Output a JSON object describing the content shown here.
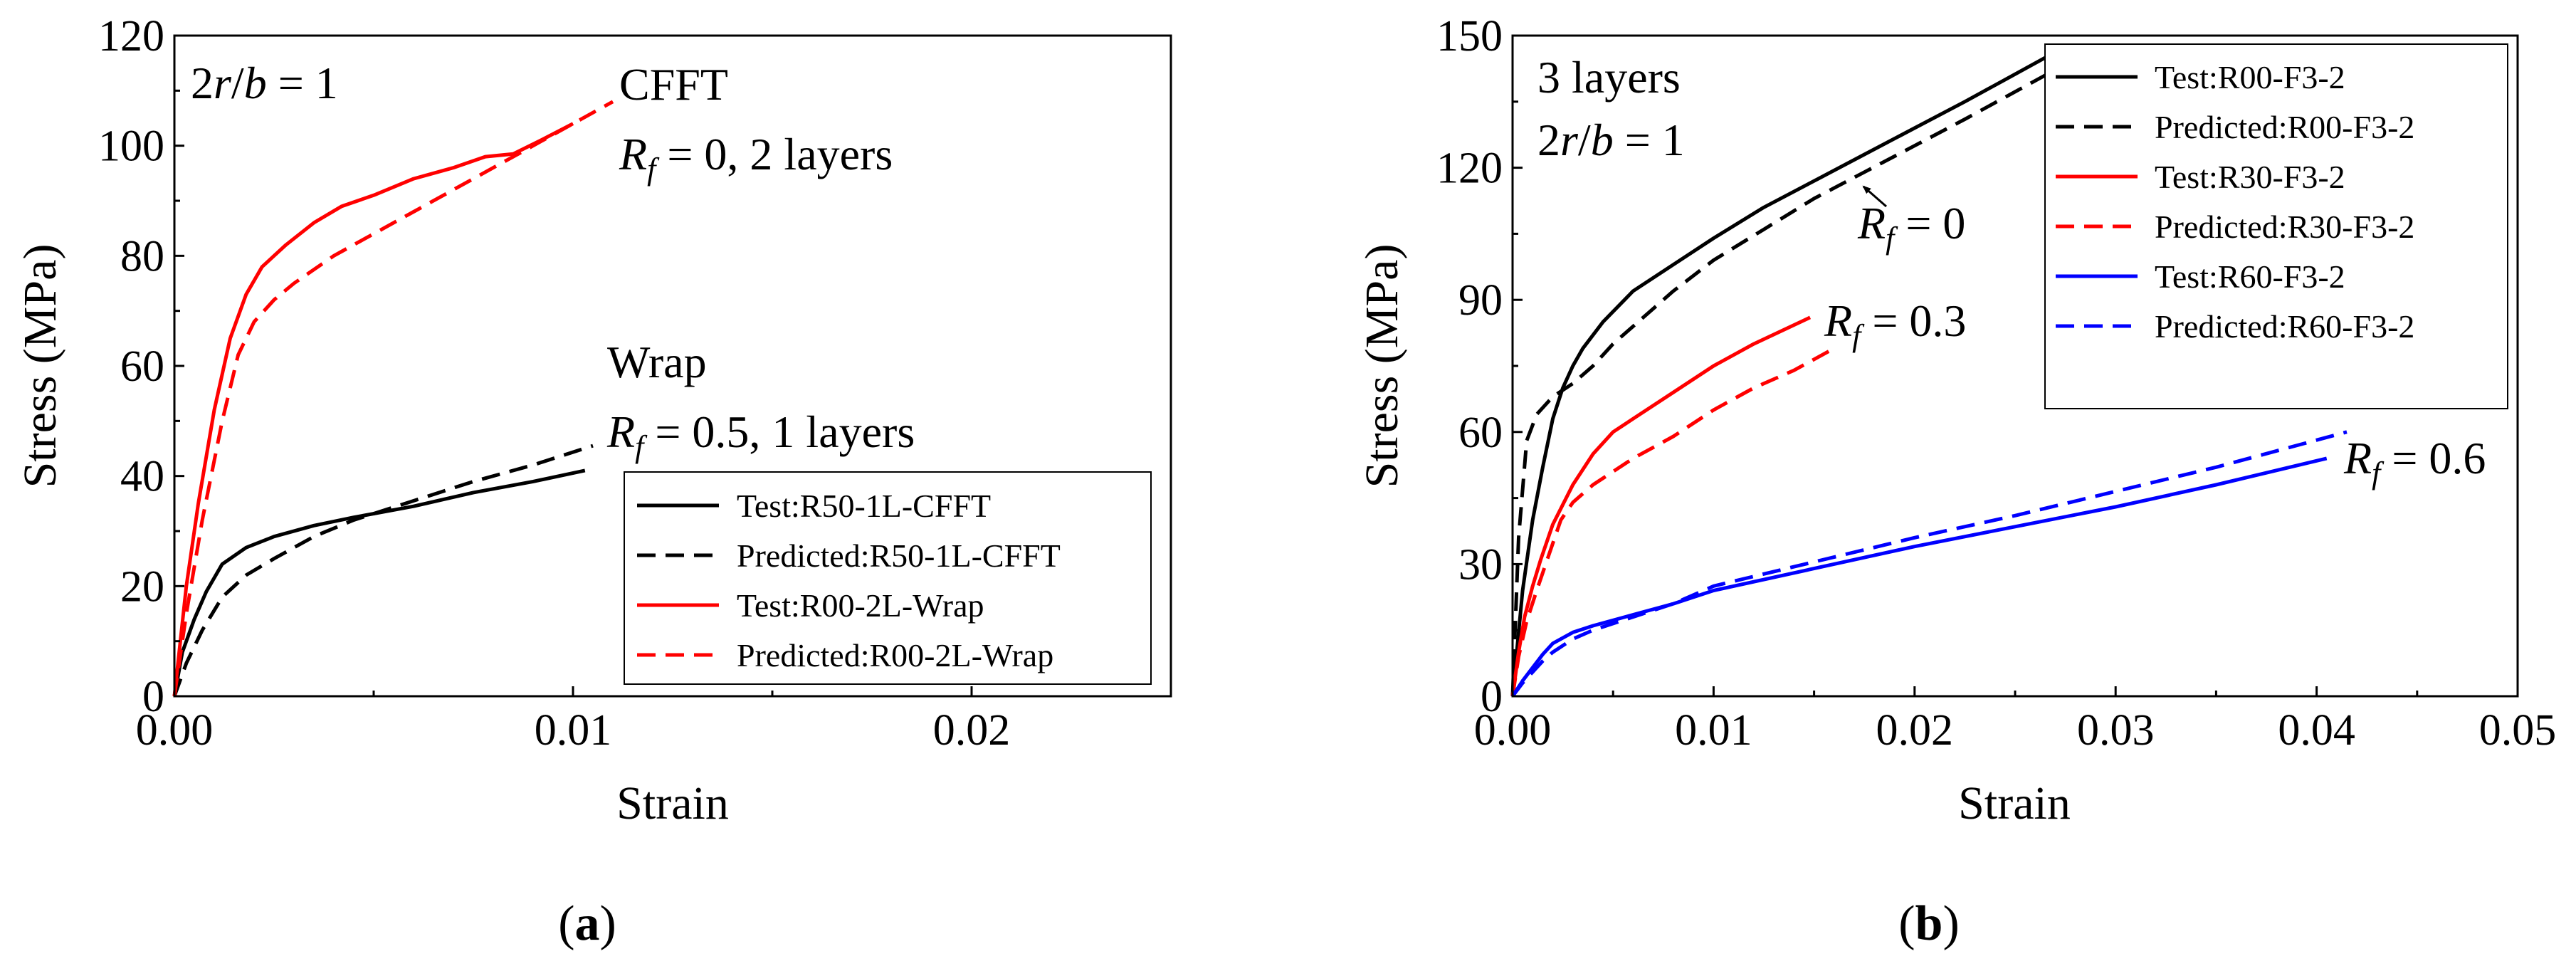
{
  "figure_labels": [
    "a",
    "b"
  ],
  "chart_data": [
    {
      "type": "line",
      "panel": "a",
      "xlabel": "Strain",
      "ylabel": "Stress (MPa)",
      "xlim": [
        0,
        0.025
      ],
      "ylim": [
        0,
        120
      ],
      "xticks": [
        0,
        0.01,
        0.02
      ],
      "xtick_labels": [
        "0.00",
        "0.01",
        "0.02"
      ],
      "yticks": [
        0,
        20,
        40,
        60,
        80,
        100,
        120
      ],
      "ytick_labels": [
        "0",
        "20",
        "40",
        "60",
        "80",
        "100",
        "120"
      ],
      "legend_position": "bottom-right",
      "series": [
        {
          "name": "Test:R50-1L-CFFT",
          "color": "#000000",
          "dash": "solid",
          "x": [
            0,
            0.0002,
            0.0005,
            0.0008,
            0.0012,
            0.0018,
            0.0025,
            0.0035,
            0.0045,
            0.006,
            0.0075,
            0.009,
            0.0103
          ],
          "y": [
            0,
            8,
            14,
            19,
            24,
            27,
            29,
            31,
            32.5,
            34.5,
            37,
            39,
            41
          ]
        },
        {
          "name": "Predicted:R50-1L-CFFT",
          "color": "#000000",
          "dash": "dashed",
          "x": [
            0,
            0.0003,
            0.0007,
            0.0012,
            0.0018,
            0.0025,
            0.0035,
            0.0045,
            0.006,
            0.0075,
            0.009,
            0.0105
          ],
          "y": [
            0,
            6,
            12,
            18,
            22,
            25,
            29,
            32,
            35.5,
            39,
            42,
            45.5
          ]
        },
        {
          "name": "Test:R00-2L-Wrap",
          "color": "#ff0000",
          "dash": "solid",
          "x": [
            0,
            0.0003,
            0.0006,
            0.001,
            0.0014,
            0.0018,
            0.0022,
            0.0028,
            0.0035,
            0.0042,
            0.005,
            0.006,
            0.007,
            0.0078,
            0.0085,
            0.0092,
            0.01
          ],
          "y": [
            0,
            20,
            35,
            52,
            65,
            73,
            78,
            82,
            86,
            89,
            91,
            94,
            96,
            98,
            98.5,
            101,
            104
          ]
        },
        {
          "name": "Predicted:R00-2L-Wrap",
          "color": "#ff0000",
          "dash": "dashed",
          "x": [
            0,
            0.0003,
            0.0007,
            0.0012,
            0.0016,
            0.002,
            0.0025,
            0.003,
            0.004,
            0.005,
            0.006,
            0.007,
            0.008,
            0.009,
            0.01,
            0.011
          ],
          "y": [
            0,
            15,
            32,
            50,
            62,
            68,
            72,
            75,
            80,
            84,
            88,
            92,
            96,
            100,
            104,
            108
          ]
        }
      ],
      "annotations": {
        "geometry": "2r/b = 1",
        "top_title": "CFFT",
        "top_note": "Rf = 0, 2 layers",
        "mid_title": "Wrap",
        "mid_note": "Rf = 0.5, 1 layers"
      }
    },
    {
      "type": "line",
      "panel": "b",
      "xlabel": "Strain",
      "ylabel": "Stress (MPa)",
      "xlim": [
        0,
        0.05
      ],
      "ylim": [
        0,
        150
      ],
      "xticks": [
        0,
        0.01,
        0.02,
        0.03,
        0.04,
        0.05
      ],
      "xtick_labels": [
        "0.00",
        "0.01",
        "0.02",
        "0.03",
        "0.04",
        "0.05"
      ],
      "yticks": [
        0,
        30,
        60,
        90,
        120,
        150
      ],
      "ytick_labels": [
        "0",
        "30",
        "60",
        "90",
        "120",
        "150"
      ],
      "legend_position": "top-right",
      "series": [
        {
          "name": "Test:R00-F3-2",
          "color": "#000000",
          "dash": "solid",
          "x": [
            0,
            0.0005,
            0.001,
            0.0015,
            0.002,
            0.0025,
            0.003,
            0.0035,
            0.0045,
            0.006,
            0.008,
            0.01,
            0.0125,
            0.015,
            0.0175,
            0.02,
            0.0225,
            0.0245,
            0.0265
          ],
          "y": [
            0,
            24,
            40,
            52,
            63,
            70,
            75,
            79,
            85,
            92,
            98,
            104,
            111,
            117,
            123,
            129,
            135,
            140,
            145
          ]
        },
        {
          "name": "Predicted:R00-F3-2",
          "color": "#000000",
          "dash": "dashed",
          "x": [
            0,
            0.0003,
            0.0007,
            0.0012,
            0.002,
            0.003,
            0.004,
            0.005,
            0.0065,
            0.008,
            0.01,
            0.0125,
            0.015,
            0.0175,
            0.02,
            0.0225,
            0.0245,
            0.0265
          ],
          "y": [
            0,
            36,
            58,
            64,
            68,
            71,
            75,
            80,
            86,
            92,
            99,
            106,
            113,
            119,
            125,
            131,
            136,
            141
          ]
        },
        {
          "name": "Test:R30-F3-2",
          "color": "#ff0000",
          "dash": "solid",
          "x": [
            0,
            0.0003,
            0.0006,
            0.001,
            0.0014,
            0.002,
            0.003,
            0.004,
            0.005,
            0.006,
            0.008,
            0.01,
            0.012,
            0.0148
          ],
          "y": [
            0,
            10,
            18,
            25,
            31,
            39,
            48,
            55,
            60,
            63,
            69,
            75,
            80,
            86
          ]
        },
        {
          "name": "Predicted:R30-F3-2",
          "color": "#ff0000",
          "dash": "dashed",
          "x": [
            0,
            0.0003,
            0.0007,
            0.0012,
            0.0018,
            0.0024,
            0.003,
            0.004,
            0.005,
            0.006,
            0.008,
            0.01,
            0.012,
            0.014,
            0.016
          ],
          "y": [
            0,
            9,
            17,
            24,
            32,
            40,
            44,
            48,
            51,
            54,
            59,
            65,
            70,
            74,
            79
          ]
        },
        {
          "name": "Test:R60-F3-2",
          "color": "#0000ff",
          "dash": "solid",
          "x": [
            0,
            0.0005,
            0.001,
            0.0015,
            0.002,
            0.003,
            0.004,
            0.006,
            0.008,
            0.01,
            0.015,
            0.02,
            0.025,
            0.03,
            0.035,
            0.0405
          ],
          "y": [
            0,
            3.5,
            6.5,
            9.5,
            12,
            14.5,
            16,
            18.5,
            21,
            24,
            29,
            34,
            38.5,
            43,
            48,
            54
          ]
        },
        {
          "name": "Predicted:R60-F3-2",
          "color": "#0000ff",
          "dash": "dashed",
          "x": [
            0,
            0.0005,
            0.001,
            0.0015,
            0.002,
            0.003,
            0.004,
            0.006,
            0.008,
            0.01,
            0.015,
            0.02,
            0.025,
            0.03,
            0.035,
            0.0415
          ],
          "y": [
            0,
            3,
            5.5,
            8,
            10,
            13,
            15,
            18,
            21,
            25,
            30.5,
            36,
            41,
            46.5,
            52,
            60
          ]
        }
      ],
      "annotations": {
        "layers": "3 layers",
        "geometry": "2r/b = 1",
        "rf0": "Rf = 0",
        "rf03": "Rf = 0.3",
        "rf06": "Rf = 0.6"
      }
    }
  ]
}
